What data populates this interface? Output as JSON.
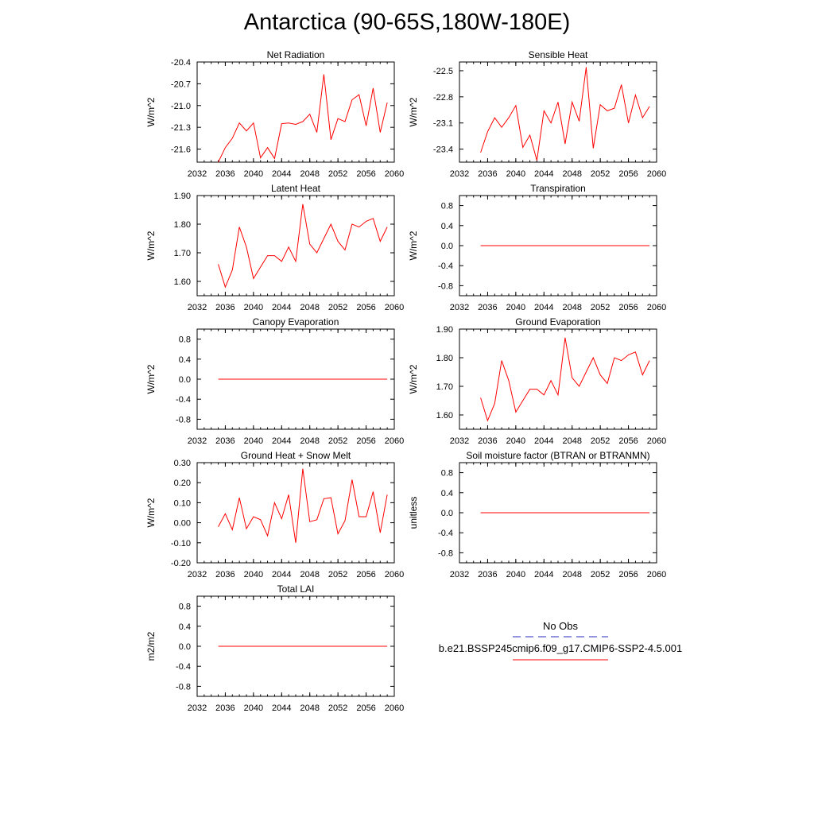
{
  "title": "Antarctica (90-65S,180W-180E)",
  "colors": {
    "model": "#ff0000",
    "obs": "#2b2bbf",
    "axis": "#000000"
  },
  "legend": {
    "obs_label": "No Obs",
    "model_label": "b.e21.BSSP245cmip6.f09_g17.CMIP6-SSP2-4.5.001"
  },
  "chart_data": [
    {
      "type": "line",
      "title": "Net Radiation",
      "ylabel": "W/m^2",
      "xlim": [
        2032,
        2060
      ],
      "ylim": [
        -21.78,
        -20.4
      ],
      "xticks": [
        "2032",
        "2036",
        "2040",
        "2044",
        "2048",
        "2052",
        "2056",
        "2060"
      ],
      "yticks": [
        "-20.4",
        "-20.7",
        "-21.0",
        "-21.3",
        "-21.6"
      ],
      "x": [
        2035,
        2036,
        2037,
        2038,
        2039,
        2040,
        2041,
        2042,
        2043,
        2044,
        2045,
        2046,
        2047,
        2048,
        2049,
        2050,
        2051,
        2052,
        2053,
        2054,
        2055,
        2056,
        2057,
        2058,
        2059
      ],
      "series": [
        {
          "values": [
            -21.78,
            -21.58,
            -21.45,
            -21.24,
            -21.35,
            -21.24,
            -21.72,
            -21.58,
            -21.73,
            -21.25,
            -21.24,
            -21.26,
            -21.22,
            -21.12,
            -21.37,
            -20.57,
            -21.47,
            -21.18,
            -21.22,
            -20.92,
            -20.85,
            -21.28,
            -20.76,
            -21.37,
            -20.96
          ]
        }
      ]
    },
    {
      "type": "line",
      "title": "Sensible Heat",
      "ylabel": "W/m^2",
      "xlim": [
        2032,
        2060
      ],
      "ylim": [
        -23.55,
        -22.4
      ],
      "xticks": [
        "2032",
        "2036",
        "2040",
        "2044",
        "2048",
        "2052",
        "2056",
        "2060"
      ],
      "yticks": [
        "-22.5",
        "-22.8",
        "-23.1",
        "-23.4"
      ],
      "x": [
        2035,
        2036,
        2037,
        2038,
        2039,
        2040,
        2041,
        2042,
        2043,
        2044,
        2045,
        2046,
        2047,
        2048,
        2049,
        2050,
        2051,
        2052,
        2053,
        2054,
        2055,
        2056,
        2057,
        2058,
        2059
      ],
      "series": [
        {
          "values": [
            -23.44,
            -23.2,
            -23.04,
            -23.15,
            -23.04,
            -22.9,
            -23.38,
            -23.24,
            -23.53,
            -22.96,
            -23.1,
            -22.86,
            -23.34,
            -22.86,
            -23.08,
            -22.46,
            -23.39,
            -22.89,
            -22.96,
            -22.93,
            -22.66,
            -23.1,
            -22.78,
            -23.04,
            -22.91
          ]
        }
      ]
    },
    {
      "type": "line",
      "title": "Latent Heat",
      "ylabel": "W/m^2",
      "xlim": [
        2032,
        2060
      ],
      "ylim": [
        1.55,
        1.9
      ],
      "xticks": [
        "2032",
        "2036",
        "2040",
        "2044",
        "2048",
        "2052",
        "2056",
        "2060"
      ],
      "yticks": [
        "1.90",
        "1.80",
        "1.70",
        "1.60"
      ],
      "x": [
        2035,
        2036,
        2037,
        2038,
        2039,
        2040,
        2041,
        2042,
        2043,
        2044,
        2045,
        2046,
        2047,
        2048,
        2049,
        2050,
        2051,
        2052,
        2053,
        2054,
        2055,
        2056,
        2057,
        2058,
        2059
      ],
      "series": [
        {
          "values": [
            1.66,
            1.58,
            1.64,
            1.79,
            1.72,
            1.61,
            1.65,
            1.69,
            1.69,
            1.67,
            1.72,
            1.67,
            1.87,
            1.73,
            1.7,
            1.75,
            1.8,
            1.74,
            1.71,
            1.8,
            1.79,
            1.81,
            1.82,
            1.74,
            1.79
          ]
        }
      ]
    },
    {
      "type": "line",
      "title": "Transpiration",
      "ylabel": "W/m^2",
      "xlim": [
        2032,
        2060
      ],
      "ylim": [
        -1.0,
        1.0
      ],
      "xticks": [
        "2032",
        "2036",
        "2040",
        "2044",
        "2048",
        "2052",
        "2056",
        "2060"
      ],
      "yticks": [
        "0.8",
        "0.4",
        "0.0",
        "-0.4",
        "-0.8"
      ],
      "x": [
        2035,
        2059
      ],
      "series": [
        {
          "values": [
            0.0,
            0.0
          ]
        }
      ]
    },
    {
      "type": "line",
      "title": "Canopy Evaporation",
      "ylabel": "W/m^2",
      "xlim": [
        2032,
        2060
      ],
      "ylim": [
        -1.0,
        1.0
      ],
      "xticks": [
        "2032",
        "2036",
        "2040",
        "2044",
        "2048",
        "2052",
        "2056",
        "2060"
      ],
      "yticks": [
        "0.8",
        "0.4",
        "0.0",
        "-0.4",
        "-0.8"
      ],
      "x": [
        2035,
        2059
      ],
      "series": [
        {
          "values": [
            0.0,
            0.0
          ]
        }
      ]
    },
    {
      "type": "line",
      "title": "Ground Evaporation",
      "ylabel": "W/m^2",
      "xlim": [
        2032,
        2060
      ],
      "ylim": [
        1.55,
        1.9
      ],
      "xticks": [
        "2032",
        "2036",
        "2040",
        "2044",
        "2048",
        "2052",
        "2056",
        "2060"
      ],
      "yticks": [
        "1.90",
        "1.80",
        "1.70",
        "1.60"
      ],
      "x": [
        2035,
        2036,
        2037,
        2038,
        2039,
        2040,
        2041,
        2042,
        2043,
        2044,
        2045,
        2046,
        2047,
        2048,
        2049,
        2050,
        2051,
        2052,
        2053,
        2054,
        2055,
        2056,
        2057,
        2058,
        2059
      ],
      "series": [
        {
          "values": [
            1.66,
            1.58,
            1.64,
            1.79,
            1.72,
            1.61,
            1.65,
            1.69,
            1.69,
            1.67,
            1.72,
            1.67,
            1.87,
            1.73,
            1.7,
            1.75,
            1.8,
            1.74,
            1.71,
            1.8,
            1.79,
            1.81,
            1.82,
            1.74,
            1.79
          ]
        }
      ]
    },
    {
      "type": "line",
      "title": "Ground Heat + Snow Melt",
      "ylabel": "W/m^2",
      "xlim": [
        2032,
        2060
      ],
      "ylim": [
        -0.2,
        0.3
      ],
      "xticks": [
        "2032",
        "2036",
        "2040",
        "2044",
        "2048",
        "2052",
        "2056",
        "2060"
      ],
      "yticks": [
        "0.30",
        "0.20",
        "0.10",
        "0.00",
        "-0.10",
        "-0.20"
      ],
      "x": [
        2035,
        2036,
        2037,
        2038,
        2039,
        2040,
        2041,
        2042,
        2043,
        2044,
        2045,
        2046,
        2047,
        2048,
        2049,
        2050,
        2051,
        2052,
        2053,
        2054,
        2055,
        2056,
        2057,
        2058,
        2059
      ],
      "series": [
        {
          "values": [
            -0.02,
            0.045,
            -0.035,
            0.125,
            -0.03,
            0.03,
            0.015,
            -0.065,
            0.1,
            0.02,
            0.14,
            -0.1,
            0.27,
            0.005,
            0.015,
            0.12,
            0.125,
            -0.055,
            0.01,
            0.215,
            0.03,
            0.03,
            0.155,
            -0.05,
            0.14
          ]
        }
      ]
    },
    {
      "type": "line",
      "title": "Soil moisture factor (BTRAN or BTRANMN)",
      "ylabel": "unitless",
      "xlim": [
        2032,
        2060
      ],
      "ylim": [
        -1.0,
        1.0
      ],
      "xticks": [
        "2032",
        "2036",
        "2040",
        "2044",
        "2048",
        "2052",
        "2056",
        "2060"
      ],
      "yticks": [
        "0.8",
        "0.4",
        "0.0",
        "-0.4",
        "-0.8"
      ],
      "x": [
        2035,
        2059
      ],
      "series": [
        {
          "values": [
            0.0,
            0.0
          ]
        }
      ]
    },
    {
      "type": "line",
      "title": "Total LAI",
      "ylabel": "m2/m2",
      "xlim": [
        2032,
        2060
      ],
      "ylim": [
        -1.0,
        1.0
      ],
      "xticks": [
        "2032",
        "2036",
        "2040",
        "2044",
        "2048",
        "2052",
        "2056",
        "2060"
      ],
      "yticks": [
        "0.8",
        "0.4",
        "0.0",
        "-0.4",
        "-0.8"
      ],
      "x": [
        2035,
        2059
      ],
      "series": [
        {
          "values": [
            0.0,
            0.0
          ]
        }
      ]
    }
  ]
}
